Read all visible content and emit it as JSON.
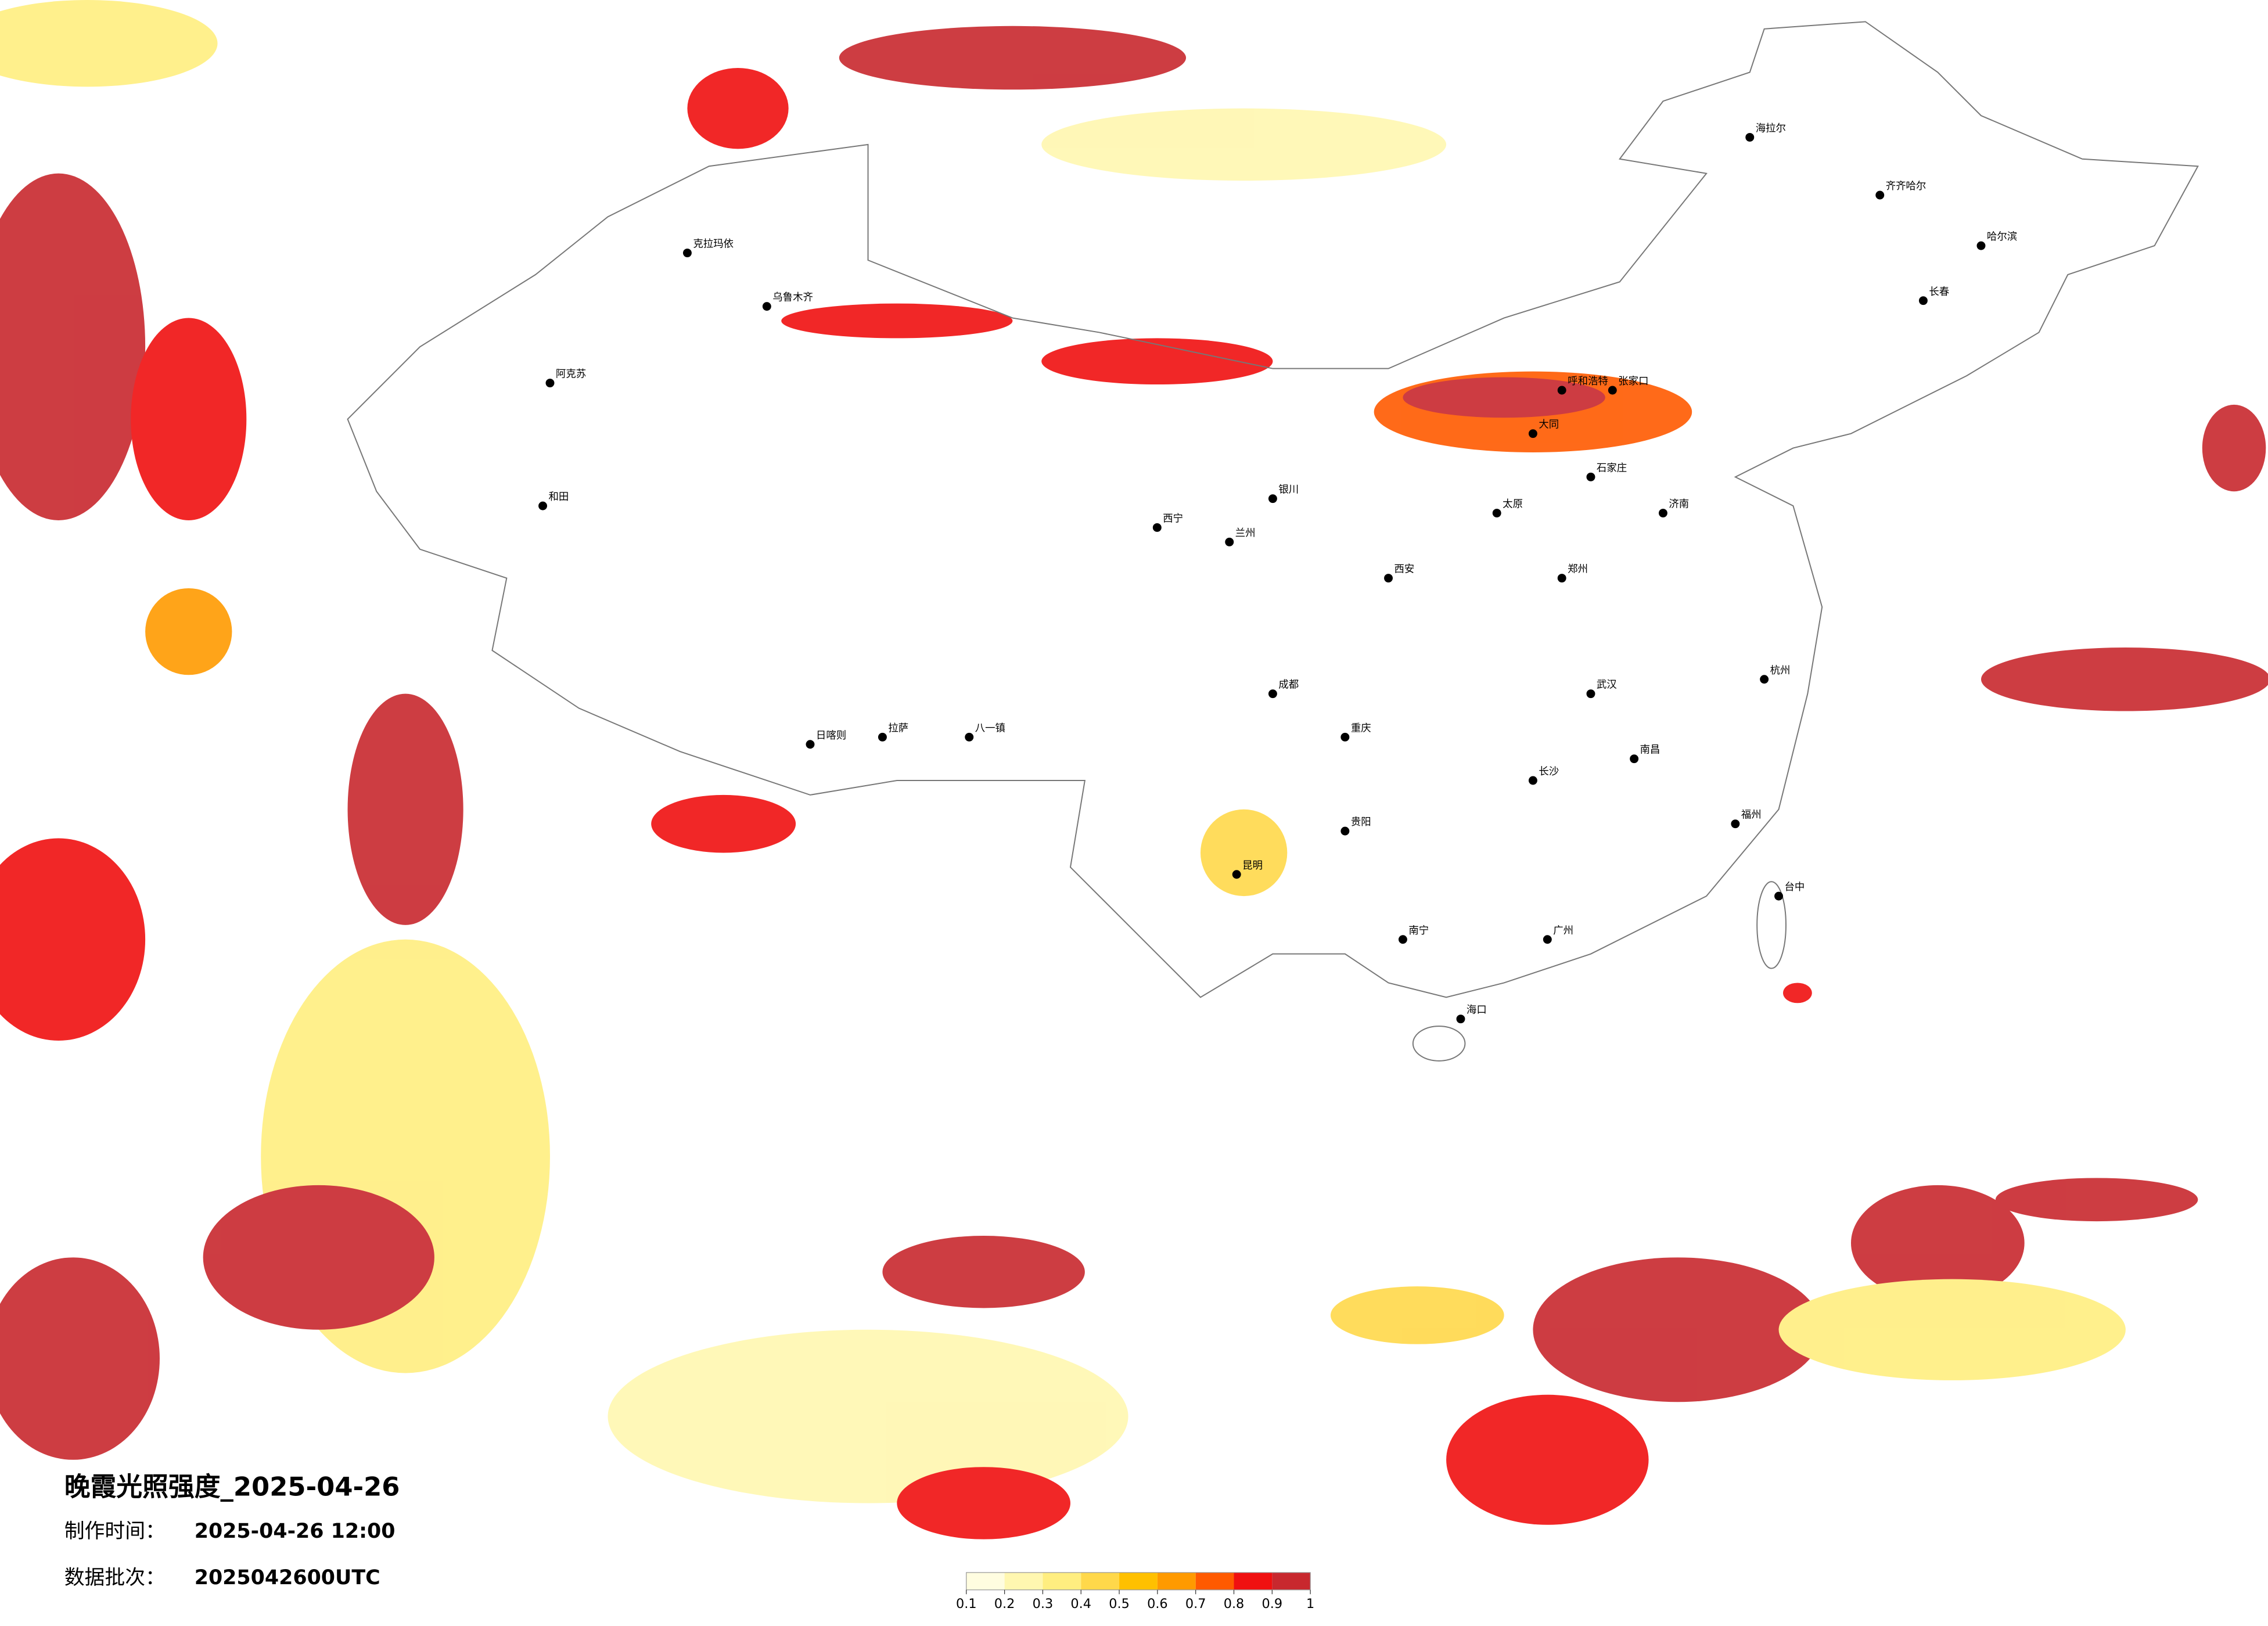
{
  "title": "晚霞光照强度_2025-04-26",
  "info": [
    {
      "label": "制作时间：",
      "value": "2025-04-26 12:00"
    },
    {
      "label": "数据批次：",
      "value": "2025042600UTC"
    }
  ],
  "colorbar": {
    "colors": [
      "#fffde0",
      "#fff7b0",
      "#ffee80",
      "#ffd84a",
      "#ffc000",
      "#ff9a00",
      "#ff5a00",
      "#f01010",
      "#c8282e"
    ],
    "ticks": [
      0.1,
      0.2,
      0.3,
      0.4,
      0.5,
      0.6,
      0.7,
      0.8,
      0.9,
      1
    ]
  },
  "cities": [
    "海拉尔",
    "齐齐哈尔",
    "哈尔滨",
    "长春",
    "呼和浩特",
    "张家口",
    "大同",
    "石家庄",
    "太原",
    "济南",
    "郑州",
    "西安",
    "兰州",
    "西宁",
    "银川",
    "武汉",
    "长沙",
    "南昌",
    "杭州",
    "福州",
    "广州",
    "南宁",
    "海口",
    "贵阳",
    "昆明",
    "成都",
    "重庆",
    "拉萨",
    "日喀则",
    "八一镇",
    "乌鲁木齐",
    "克拉玛依",
    "阿克苏",
    "和田",
    "台中"
  ]
}
